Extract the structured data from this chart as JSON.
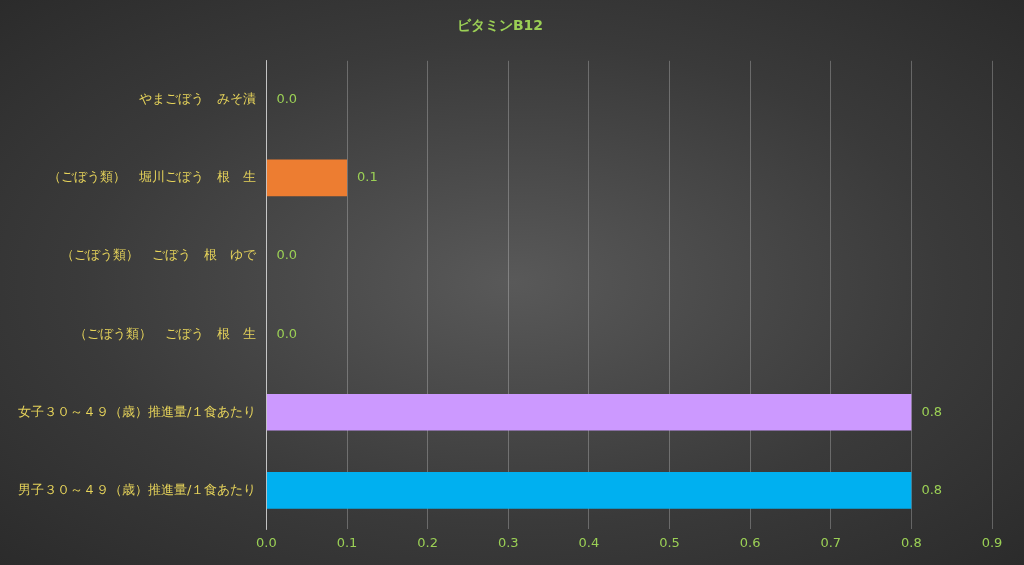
{
  "chart_data": {
    "type": "bar",
    "orientation": "horizontal",
    "title": "ビタミンB12",
    "categories": [
      "やまごぼう　みそ漬",
      "（ごぼう類）　堀川ごぼう　根　生",
      "（ごぼう類）　ごぼう　根　ゆで",
      "（ごぼう類）　ごぼう　根　生",
      "女子３０～４９（歳）推進量/１食あたり",
      "男子３０～４９（歳）推進量/１食あたり"
    ],
    "values": [
      0,
      0.1,
      0,
      0,
      0.8,
      0.8
    ],
    "colors": [
      "#ed7d31",
      "#ed7d31",
      "#ed7d31",
      "#ed7d31",
      "#cc99ff",
      "#00b0f0"
    ],
    "value_labels": [
      "0.0",
      "0.1",
      "0.0",
      "0.0",
      "0.8",
      "0.8"
    ],
    "xlim": [
      0,
      0.9
    ],
    "xticks": [
      {
        "value": 0,
        "label": "0.0"
      },
      {
        "value": 0.1,
        "label": "0.1"
      },
      {
        "value": 0.2,
        "label": "0.2"
      },
      {
        "value": 0.3,
        "label": "0.3"
      },
      {
        "value": 0.4,
        "label": "0.4"
      },
      {
        "value": 0.5,
        "label": "0.5"
      },
      {
        "value": 0.6,
        "label": "0.6"
      },
      {
        "value": 0.7,
        "label": "0.7"
      },
      {
        "value": 0.8,
        "label": "0.8"
      },
      {
        "value": 0.9,
        "label": "0.9"
      }
    ],
    "grid": "x",
    "legend": false
  }
}
